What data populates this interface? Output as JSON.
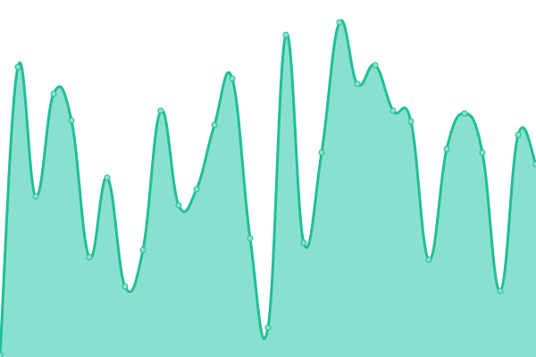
{
  "chart_data": {
    "type": "area",
    "title": "",
    "xlabel": "",
    "ylabel": "",
    "x": [
      0,
      1,
      2,
      3,
      4,
      5,
      6,
      7,
      8,
      9,
      10,
      11,
      12,
      13,
      14,
      15,
      16,
      17,
      18,
      19,
      20,
      21,
      22,
      23,
      24,
      25,
      26,
      27,
      28,
      29,
      30
    ],
    "series": [
      {
        "values": [
          2,
          325,
          180,
          295,
          265,
          112,
          201,
          79,
          120,
          276,
          170,
          188,
          260,
          312,
          133,
          33,
          361,
          128,
          229,
          375,
          306,
          327,
          276,
          264,
          109,
          233,
          273,
          229,
          74,
          249,
          216
        ]
      }
    ],
    "ylim": [
      0,
      400
    ],
    "grid": false,
    "axes_visible": false,
    "smooth": true,
    "markers": true,
    "colors": {
      "line": "#1fbf96",
      "fill": "#8ae0ce",
      "marker_fill": "#8ae0ce",
      "marker_stroke": "#1fbf96"
    }
  }
}
